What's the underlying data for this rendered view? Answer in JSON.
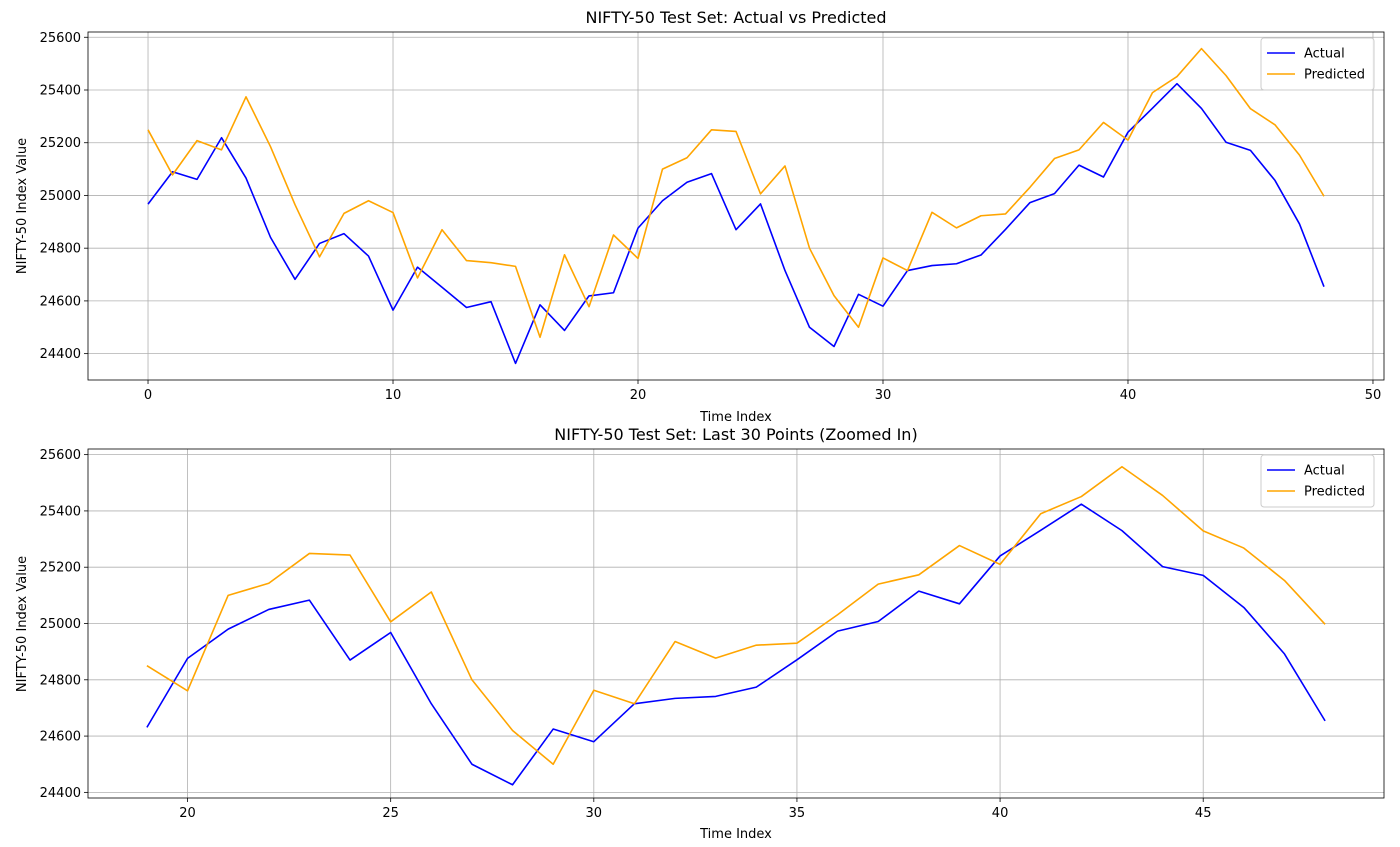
{
  "chart_data": [
    {
      "type": "line",
      "title": "NIFTY-50 Test Set: Actual vs Predicted",
      "xlabel": "Time Index",
      "ylabel": "NIFTY-50 Index Value",
      "xlim": [
        -2.45,
        50.45
      ],
      "ylim": [
        24300,
        25620
      ],
      "xticks": [
        0,
        10,
        20,
        30,
        40,
        50
      ],
      "yticks": [
        24400,
        24600,
        24800,
        25000,
        25200,
        25400,
        25600
      ],
      "grid": true,
      "legend_position": "upper right",
      "x": [
        0,
        1,
        2,
        3,
        4,
        5,
        6,
        7,
        8,
        9,
        10,
        11,
        12,
        13,
        14,
        15,
        16,
        17,
        18,
        19,
        20,
        21,
        22,
        23,
        24,
        25,
        26,
        27,
        28,
        29,
        30,
        31,
        32,
        33,
        34,
        35,
        36,
        37,
        38,
        39,
        40,
        41,
        42,
        43,
        44,
        45,
        46,
        47,
        48
      ],
      "series": [
        {
          "name": "Actual",
          "color": "#0000ff",
          "values": [
            24967,
            25090,
            25061,
            25219,
            25066,
            24841,
            24682,
            24818,
            24855,
            24770,
            24565,
            24728,
            24652,
            24575,
            24597,
            24363,
            24585,
            24488,
            24619,
            24631,
            24876,
            24980,
            25050,
            25083,
            24870,
            24968,
            24715,
            24500,
            24427,
            24625,
            24580,
            24715,
            24734,
            24741,
            24774,
            24871,
            24973,
            25007,
            25115,
            25070,
            25240,
            25331,
            25424,
            25330,
            25202,
            25171,
            25057,
            24892,
            24654
          ]
        },
        {
          "name": "Predicted",
          "color": "#ffa500",
          "values": [
            25249,
            25078,
            25208,
            25173,
            25374,
            25185,
            24965,
            24767,
            24932,
            24980,
            24935,
            24687,
            24870,
            24753,
            24745,
            24731,
            24462,
            24775,
            24578,
            24850,
            24761,
            25100,
            25143,
            25249,
            25243,
            25006,
            25112,
            24800,
            24620,
            24500,
            24763,
            24715,
            24936,
            24877,
            24923,
            24930,
            25031,
            25140,
            25173,
            25277,
            25210,
            25390,
            25451,
            25557,
            25455,
            25329,
            25268,
            25153,
            24997
          ]
        }
      ]
    },
    {
      "type": "line",
      "title": "NIFTY-50 Test Set: Last 30 Points (Zoomed In)",
      "xlabel": "Time Index",
      "ylabel": "NIFTY-50 Index Value",
      "xlim": [
        17.55,
        49.45
      ],
      "ylim": [
        24380,
        25620
      ],
      "xticks": [
        20,
        25,
        30,
        35,
        40,
        45
      ],
      "yticks": [
        24400,
        24600,
        24800,
        25000,
        25200,
        25400,
        25600
      ],
      "grid": true,
      "legend_position": "upper right",
      "x": [
        19,
        20,
        21,
        22,
        23,
        24,
        25,
        26,
        27,
        28,
        29,
        30,
        31,
        32,
        33,
        34,
        35,
        36,
        37,
        38,
        39,
        40,
        41,
        42,
        43,
        44,
        45,
        46,
        47,
        48
      ],
      "series": [
        {
          "name": "Actual",
          "color": "#0000ff",
          "values": [
            24631,
            24876,
            24980,
            25050,
            25083,
            24870,
            24968,
            24715,
            24500,
            24427,
            24625,
            24580,
            24715,
            24734,
            24741,
            24774,
            24871,
            24973,
            25007,
            25115,
            25070,
            25240,
            25331,
            25424,
            25330,
            25202,
            25171,
            25057,
            24892,
            24654
          ]
        },
        {
          "name": "Predicted",
          "color": "#ffa500",
          "values": [
            24850,
            24761,
            25100,
            25143,
            25249,
            25243,
            25006,
            25112,
            24800,
            24620,
            24500,
            24763,
            24715,
            24936,
            24877,
            24923,
            24930,
            25031,
            25140,
            25173,
            25277,
            25210,
            25390,
            25451,
            25557,
            25455,
            25329,
            25268,
            25153,
            24997
          ]
        }
      ]
    }
  ]
}
